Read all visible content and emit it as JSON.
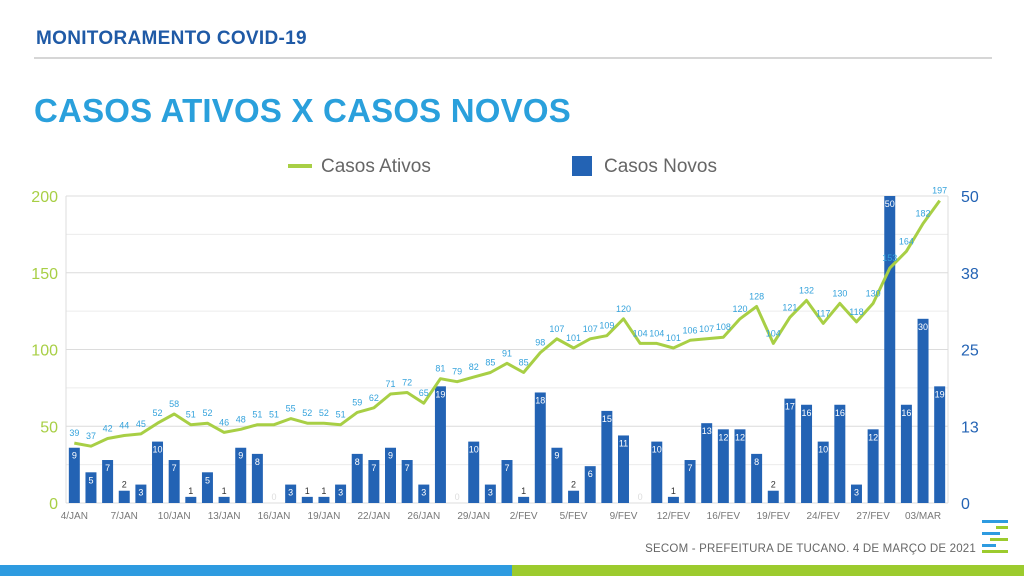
{
  "header": {
    "title": "MONITORAMENTO COVID-19"
  },
  "page": {
    "title": "CASOS ATIVOS X CASOS NOVOS"
  },
  "footer": {
    "text": "SECOM - PREFEITURA DE TUCANO. 4 DE MARÇO DE 2021"
  },
  "colors": {
    "line": "#a8cf45",
    "bar": "#2363b4",
    "label": "#35a3dc",
    "left_axis": "#a8cf45",
    "right_axis": "#2363b4"
  },
  "chart_data": {
    "type": "bar+line",
    "title": "CASOS ATIVOS X CASOS NOVOS",
    "legend_position": "top-center",
    "legend": [
      "Casos Ativos",
      "Casos Novos"
    ],
    "y_left": {
      "ylim": [
        0,
        200
      ],
      "ticks": [
        "0",
        "50",
        "100",
        "150",
        "200"
      ]
    },
    "y_right": {
      "ylim": [
        0,
        50
      ],
      "ticks": [
        "0",
        "13",
        "25",
        "38",
        "50"
      ]
    },
    "x_tick_labels": [
      "4/JAN",
      "7/JAN",
      "10/JAN",
      "13/JAN",
      "16/JAN",
      "19/JAN",
      "22/JAN",
      "26/JAN",
      "29/JAN",
      "2/FEV",
      "5/FEV",
      "9/FEV",
      "12/FEV",
      "16/FEV",
      "19/FEV",
      "24/FEV",
      "27/FEV",
      "03/MAR"
    ],
    "x_tick_index": [
      0,
      3,
      6,
      9,
      12,
      15,
      18,
      21,
      24,
      27,
      30,
      33,
      36,
      39,
      42,
      45,
      48,
      51
    ],
    "series": [
      {
        "name": "Casos Novos",
        "axis": "right",
        "values": [
          9,
          5,
          7,
          2,
          3,
          10,
          7,
          1,
          5,
          1,
          9,
          8,
          0,
          3,
          1,
          1,
          3,
          8,
          7,
          9,
          7,
          3,
          19,
          0,
          10,
          3,
          7,
          1,
          18,
          9,
          2,
          6,
          15,
          11,
          0,
          10,
          1,
          7,
          13,
          12,
          12,
          8,
          2,
          17,
          16,
          10,
          16,
          3,
          12,
          50,
          16,
          30,
          19
        ]
      },
      {
        "name": "Casos Ativos",
        "axis": "left",
        "values": [
          39,
          37,
          42,
          44,
          45,
          52,
          58,
          51,
          52,
          46,
          48,
          51,
          51,
          55,
          52,
          52,
          51,
          59,
          62,
          71,
          72,
          65,
          81,
          79,
          82,
          85,
          91,
          85,
          98,
          107,
          101,
          107,
          109,
          120,
          104,
          104,
          101,
          106,
          107,
          108,
          120,
          128,
          104,
          121,
          132,
          117,
          130,
          118,
          130,
          153,
          164,
          182,
          197
        ]
      }
    ]
  }
}
